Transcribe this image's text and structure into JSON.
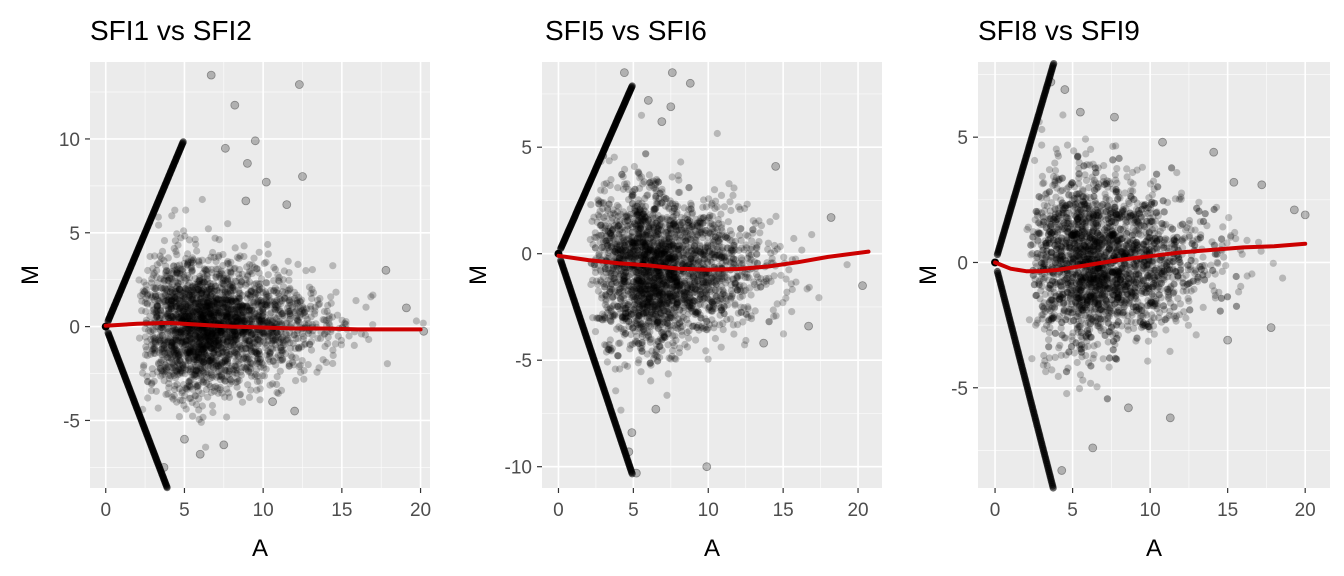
{
  "colors": {
    "panel_bg": "#EBEBEB",
    "grid_major": "#FFFFFF",
    "points": "#000000",
    "trend": "#CC0000",
    "tick_text": "#4D4D4D"
  },
  "chart_data": [
    {
      "type": "scatter",
      "title": "SFI1  vs  SFI2",
      "xlabel": "A",
      "ylabel": "M",
      "xlim": [
        -1,
        20.6
      ],
      "ylim": [
        -8.6,
        14.1
      ],
      "x_ticks": [
        0,
        5,
        10,
        15,
        20
      ],
      "x_tick_labels": [
        "0",
        "5",
        "10",
        "15",
        "20"
      ],
      "y_ticks": [
        -5,
        0,
        5,
        10
      ],
      "y_tick_labels": [
        "-5",
        "0",
        "5",
        "10"
      ],
      "grid": true,
      "legend": "none",
      "cloud": {
        "a_max": 20.2,
        "spread": 4.6,
        "center": 0.1,
        "lower_limit_slope": -2.2,
        "upper_limit_slope": 2.0
      },
      "trend_line": {
        "x": [
          0,
          2,
          4,
          6,
          8,
          10,
          12,
          14,
          16,
          18,
          20
        ],
        "y": [
          0.05,
          0.15,
          0.2,
          0.1,
          0.0,
          -0.05,
          -0.1,
          -0.1,
          -0.15,
          -0.15,
          -0.15
        ]
      },
      "outliers": [
        {
          "x": 6.7,
          "y": 13.4
        },
        {
          "x": 12.3,
          "y": 12.9
        },
        {
          "x": 8.2,
          "y": 11.8
        },
        {
          "x": 9.5,
          "y": 9.9
        },
        {
          "x": 12.5,
          "y": 8.0
        },
        {
          "x": 10.2,
          "y": 7.7
        },
        {
          "x": 11.5,
          "y": 6.5
        },
        {
          "x": 8.9,
          "y": 6.7
        },
        {
          "x": 7.6,
          "y": 9.5
        },
        {
          "x": 9.0,
          "y": 8.7
        },
        {
          "x": 17.8,
          "y": 3.0
        },
        {
          "x": 19.1,
          "y": 1.0
        },
        {
          "x": 20.2,
          "y": -0.25
        },
        {
          "x": 7.5,
          "y": -6.3
        },
        {
          "x": 3.7,
          "y": -7.5
        },
        {
          "x": 5.0,
          "y": -6.0
        },
        {
          "x": 10.6,
          "y": -4.0
        },
        {
          "x": 12.0,
          "y": -4.5
        },
        {
          "x": 6.0,
          "y": -6.8
        }
      ]
    },
    {
      "type": "scatter",
      "title": "SFI5  vs  SFI6",
      "xlabel": "A",
      "ylabel": "M",
      "xlim": [
        -1.1,
        21.6
      ],
      "ylim": [
        -11.0,
        9.0
      ],
      "x_ticks": [
        0,
        5,
        10,
        15,
        20
      ],
      "x_tick_labels": [
        "0",
        "5",
        "10",
        "15",
        "20"
      ],
      "y_ticks": [
        -10,
        -5,
        0,
        5
      ],
      "y_tick_labels": [
        "-10",
        "-5",
        "0",
        "5"
      ],
      "grid": true,
      "legend": "none",
      "cloud": {
        "a_max": 21.0,
        "spread": 4.8,
        "center": -0.8,
        "lower_limit_slope": -2.1,
        "upper_limit_slope": 1.6
      },
      "trend_line": {
        "x": [
          0,
          2,
          4,
          6,
          8,
          10,
          12,
          14,
          16,
          18,
          20.7
        ],
        "y": [
          -0.1,
          -0.3,
          -0.45,
          -0.55,
          -0.7,
          -0.75,
          -0.72,
          -0.6,
          -0.4,
          -0.15,
          0.1
        ]
      },
      "outliers": [
        {
          "x": 7.6,
          "y": 8.5
        },
        {
          "x": 4.4,
          "y": 8.5
        },
        {
          "x": 8.8,
          "y": 8.0
        },
        {
          "x": 6.0,
          "y": 7.2
        },
        {
          "x": 7.5,
          "y": 6.9
        },
        {
          "x": 6.9,
          "y": 6.2
        },
        {
          "x": 14.5,
          "y": 4.1
        },
        {
          "x": 18.2,
          "y": 1.7
        },
        {
          "x": 20.3,
          "y": -1.5
        },
        {
          "x": 9.9,
          "y": -10.0
        },
        {
          "x": 5.2,
          "y": -10.3
        },
        {
          "x": 4.7,
          "y": -9.3
        },
        {
          "x": 6.5,
          "y": -7.3
        },
        {
          "x": 4.9,
          "y": -8.4
        },
        {
          "x": 13.7,
          "y": -4.2
        },
        {
          "x": 16.7,
          "y": -3.4
        }
      ]
    },
    {
      "type": "scatter",
      "title": "SFI8  vs  SFI9",
      "xlabel": "A",
      "ylabel": "M",
      "xlim": [
        -1.1,
        21.6
      ],
      "ylim": [
        -9.0,
        8.0
      ],
      "x_ticks": [
        0,
        5,
        10,
        15,
        20
      ],
      "x_tick_labels": [
        "0",
        "5",
        "10",
        "15",
        "20"
      ],
      "y_ticks": [
        -5,
        0,
        5
      ],
      "y_tick_labels": [
        "-5",
        "0",
        "5"
      ],
      "grid": true,
      "legend": "none",
      "cloud": {
        "a_max": 20.5,
        "spread": 4.5,
        "center": 0.0,
        "lower_limit_slope": -2.4,
        "upper_limit_slope": 2.1
      },
      "trend_line": {
        "x": [
          0,
          1,
          2,
          3,
          4,
          6,
          8,
          10,
          12,
          14,
          16,
          18,
          20
        ],
        "y": [
          0.0,
          -0.25,
          -0.35,
          -0.35,
          -0.3,
          -0.1,
          0.1,
          0.25,
          0.4,
          0.5,
          0.6,
          0.65,
          0.75
        ]
      },
      "outliers": [
        {
          "x": 3.6,
          "y": 7.2
        },
        {
          "x": 4.5,
          "y": 6.9
        },
        {
          "x": 5.5,
          "y": 6.0
        },
        {
          "x": 7.7,
          "y": 5.8
        },
        {
          "x": 10.8,
          "y": 4.8
        },
        {
          "x": 14.1,
          "y": 4.4
        },
        {
          "x": 15.4,
          "y": 3.2
        },
        {
          "x": 17.2,
          "y": 3.1
        },
        {
          "x": 19.3,
          "y": 2.1
        },
        {
          "x": 20.0,
          "y": 1.9
        },
        {
          "x": 17.8,
          "y": -2.6
        },
        {
          "x": 11.3,
          "y": -6.2
        },
        {
          "x": 4.3,
          "y": -8.3
        },
        {
          "x": 6.3,
          "y": -7.4
        },
        {
          "x": 8.6,
          "y": -5.8
        },
        {
          "x": 15.0,
          "y": -3.1
        }
      ]
    }
  ]
}
